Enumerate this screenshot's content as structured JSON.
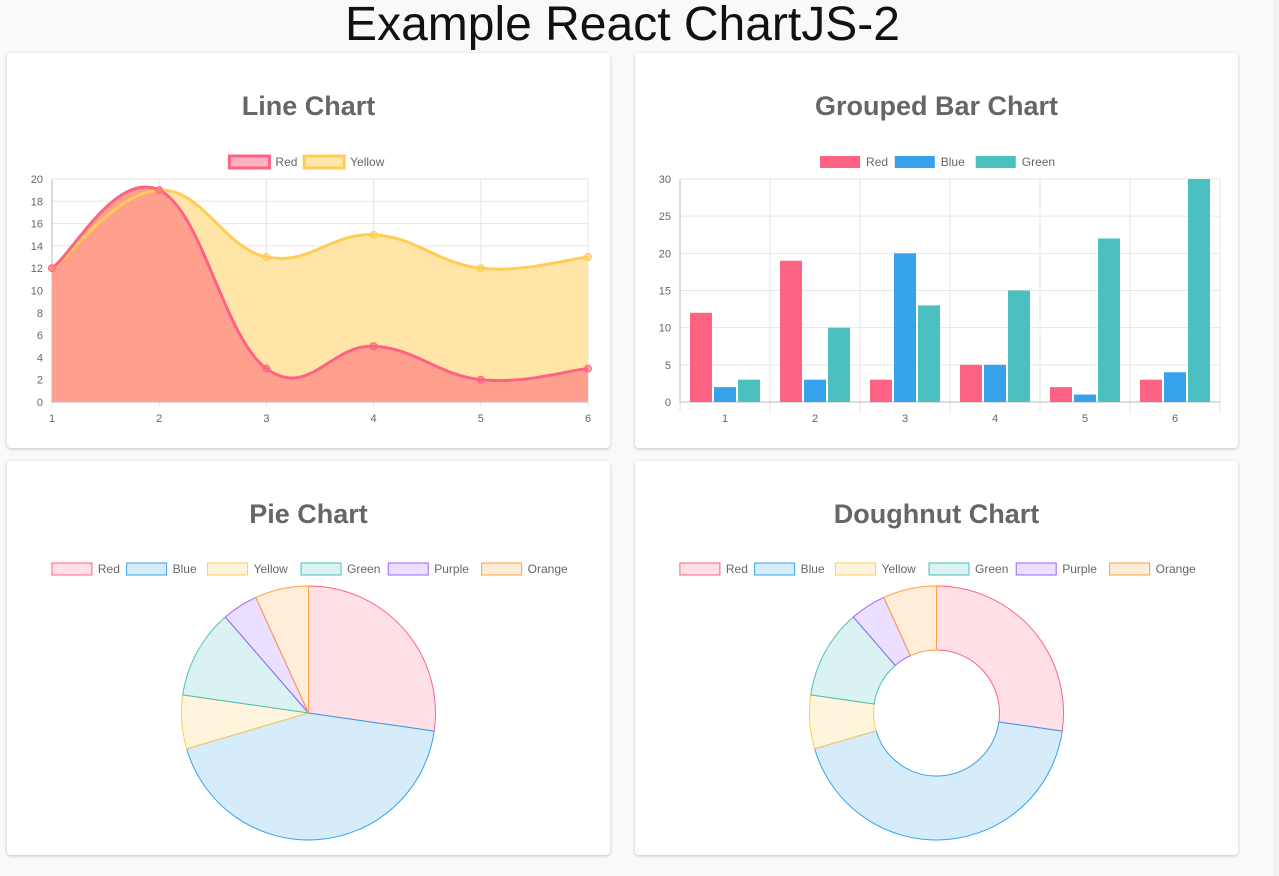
{
  "page": {
    "title": "Example React ChartJS-2"
  },
  "charts": {
    "line": {
      "title": "Line Chart"
    },
    "bar": {
      "title": "Grouped Bar Chart"
    },
    "pie": {
      "title": "Pie Chart"
    },
    "doughnut": {
      "title": "Doughnut Chart"
    }
  },
  "colors": {
    "red": "#ff6384",
    "blue": "#36a2eb",
    "yellow": "#ffcd56",
    "green": "#4bc0c0",
    "purple": "#9966ff",
    "orange": "#ff9f40",
    "line_red_fill": "#ff9f8e",
    "line_yellow_fill": "#ffe6a8"
  },
  "chart_data": [
    {
      "type": "area",
      "title": "Line Chart",
      "x": [
        "1",
        "2",
        "3",
        "4",
        "5",
        "6"
      ],
      "series": [
        {
          "name": "Red",
          "values": [
            12,
            19,
            3,
            5,
            2,
            3
          ]
        },
        {
          "name": "Yellow",
          "values": [
            12,
            19,
            13,
            15,
            12,
            13
          ]
        }
      ],
      "ylim": [
        0,
        20
      ],
      "yticks": [
        0,
        2,
        4,
        6,
        8,
        10,
        12,
        14,
        16,
        18,
        20
      ],
      "grid": true,
      "legend": "top"
    },
    {
      "type": "bar",
      "title": "Grouped Bar Chart",
      "categories": [
        "1",
        "2",
        "3",
        "4",
        "5",
        "6"
      ],
      "series": [
        {
          "name": "Red",
          "values": [
            12,
            19,
            3,
            5,
            2,
            3
          ]
        },
        {
          "name": "Blue",
          "values": [
            2,
            3,
            20,
            5,
            1,
            4
          ]
        },
        {
          "name": "Green",
          "values": [
            3,
            10,
            13,
            15,
            22,
            30
          ]
        }
      ],
      "ylim": [
        0,
        30
      ],
      "yticks": [
        0,
        5,
        10,
        15,
        20,
        25,
        30
      ],
      "grid": true,
      "legend": "top"
    },
    {
      "type": "pie",
      "title": "Pie Chart",
      "labels": [
        "Red",
        "Blue",
        "Yellow",
        "Green",
        "Purple",
        "Orange"
      ],
      "values": [
        12,
        19,
        3,
        5,
        2,
        3
      ],
      "legend": "top"
    },
    {
      "type": "pie",
      "title": "Doughnut Chart",
      "labels": [
        "Red",
        "Blue",
        "Yellow",
        "Green",
        "Purple",
        "Orange"
      ],
      "values": [
        12,
        19,
        3,
        5,
        2,
        3
      ],
      "legend": "top"
    }
  ]
}
